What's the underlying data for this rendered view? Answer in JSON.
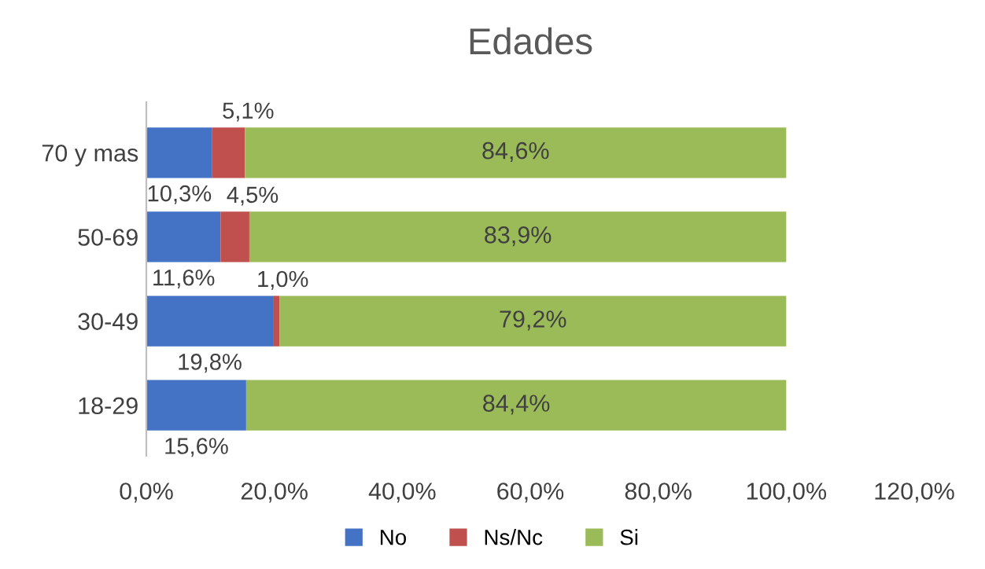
{
  "chart_data": {
    "type": "bar",
    "title": "Edades",
    "orientation": "horizontal",
    "stacked": true,
    "categories": [
      "70 y mas",
      "50-69",
      "30-49",
      "18-29"
    ],
    "series": [
      {
        "name": "No",
        "color": "#4472c4",
        "values": [
          10.3,
          11.6,
          19.8,
          15.6
        ],
        "value_labels": [
          "10,3%",
          "11,6%",
          "19,8%",
          "15,6%"
        ]
      },
      {
        "name": "Ns/Nc",
        "color": "#c0504d",
        "values": [
          5.1,
          4.5,
          1.0,
          0
        ],
        "value_labels": [
          "5,1%",
          "4,5%",
          "1,0%",
          null
        ]
      },
      {
        "name": "Si",
        "color": "#9bbb59",
        "values": [
          84.6,
          83.9,
          79.2,
          84.4
        ],
        "value_labels": [
          "84,6%",
          "83,9%",
          "79,2%",
          "84,4%"
        ]
      }
    ],
    "xlim": [
      0,
      120
    ],
    "xticks": [
      {
        "value": 0,
        "label": "0,0%"
      },
      {
        "value": 20,
        "label": "20,0%"
      },
      {
        "value": 40,
        "label": "40,0%"
      },
      {
        "value": 60,
        "label": "60,0%"
      },
      {
        "value": 80,
        "label": "80,0%"
      },
      {
        "value": 100,
        "label": "100,0%"
      },
      {
        "value": 120,
        "label": "120,0%"
      }
    ],
    "grid": false,
    "legend": "bottom"
  }
}
